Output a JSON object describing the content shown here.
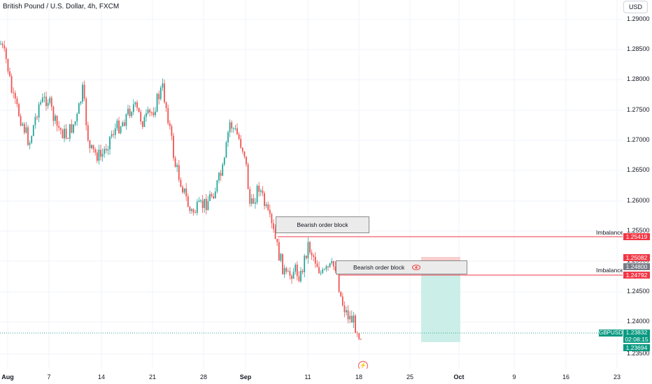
{
  "header": {
    "title": "British Pound / U.S. Dollar, 4h, FXCM"
  },
  "currency_button": "USD",
  "price_axis": [
    "1.29000",
    "1.28500",
    "1.28000",
    "1.27500",
    "1.27000",
    "1.26500",
    "1.26000",
    "1.25500",
    "1.25000",
    "1.24500",
    "1.24000",
    "1.23500"
  ],
  "time_axis": [
    {
      "label": "Aug",
      "bold": true
    },
    {
      "label": "7",
      "bold": false
    },
    {
      "label": "14",
      "bold": false
    },
    {
      "label": "21",
      "bold": false
    },
    {
      "label": "28",
      "bold": false
    },
    {
      "label": "Sep",
      "bold": true
    },
    {
      "label": "11",
      "bold": false
    },
    {
      "label": "18",
      "bold": false
    },
    {
      "label": "25",
      "bold": false
    },
    {
      "label": "Oct",
      "bold": true
    },
    {
      "label": "9",
      "bold": false
    },
    {
      "label": "16",
      "bold": false
    },
    {
      "label": "23",
      "bold": false
    }
  ],
  "annotations": {
    "ob1_label": "Bearish order block",
    "ob2_label": "Bearish order block",
    "imbalance1_label": "Imbalance",
    "imbalance2_label": "Imbalance"
  },
  "price_badges": {
    "imbalance_upper": "1.25419",
    "red_zone_top": "1.25082",
    "grey_level": "1.24800",
    "imbalance_lower": "1.24792",
    "symbol": "GBPUSD",
    "last_price": "1.23832",
    "countdown": "02:08:15",
    "position_bottom": "1.23694"
  },
  "colors": {
    "up": "#26a69a",
    "down": "#ef5350",
    "line": "#f23645",
    "grid": "#f0f3fa"
  }
}
